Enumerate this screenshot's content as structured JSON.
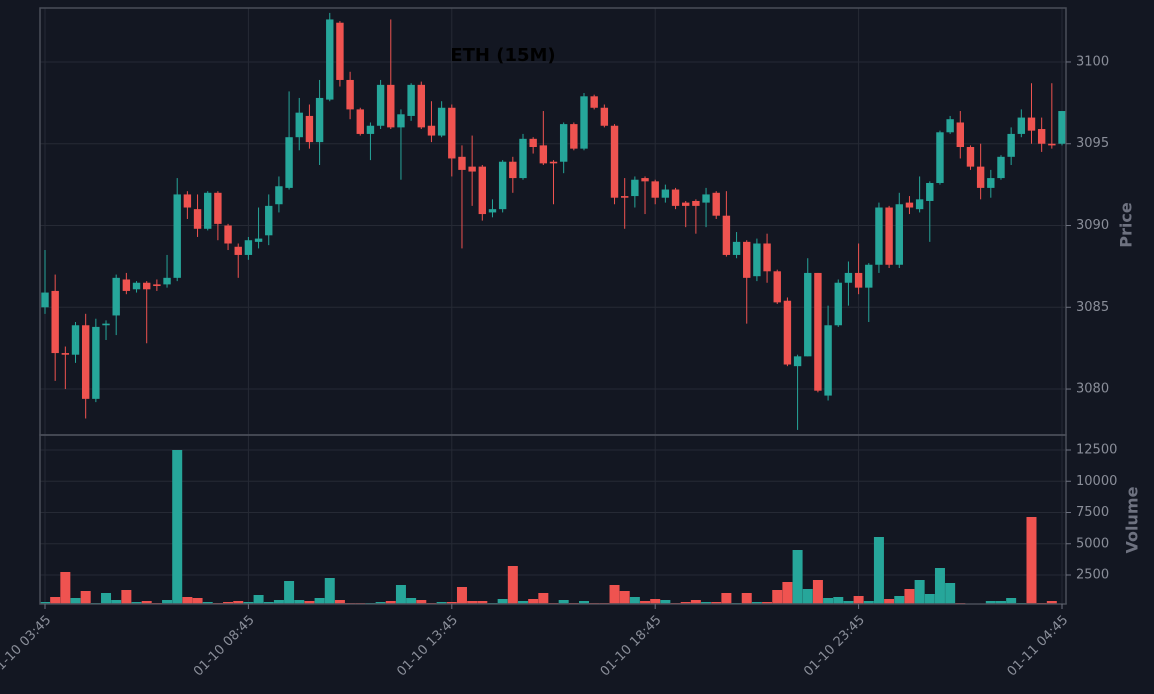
{
  "chart_data": {
    "type": "candlestick",
    "title": "ETH (15M)",
    "ylabel": "Price",
    "volume_label": "Volume",
    "up_color": "#26a69a",
    "down_color": "#ef5350",
    "grid": true,
    "x": [
      "01-10 03:45",
      "01-10 04:00",
      "01-10 04:15",
      "01-10 04:30",
      "01-10 04:45",
      "01-10 05:00",
      "01-10 05:15",
      "01-10 05:30",
      "01-10 05:45",
      "01-10 06:00",
      "01-10 06:15",
      "01-10 06:30",
      "01-10 06:45",
      "01-10 07:00",
      "01-10 07:15",
      "01-10 07:30",
      "01-10 07:45",
      "01-10 08:00",
      "01-10 08:15",
      "01-10 08:30",
      "01-10 08:45",
      "01-10 09:00",
      "01-10 09:15",
      "01-10 09:30",
      "01-10 09:45",
      "01-10 10:00",
      "01-10 10:15",
      "01-10 10:30",
      "01-10 10:45",
      "01-10 11:00",
      "01-10 11:15",
      "01-10 11:30",
      "01-10 11:45",
      "01-10 12:00",
      "01-10 12:15",
      "01-10 12:30",
      "01-10 12:45",
      "01-10 13:00",
      "01-10 13:15",
      "01-10 13:30",
      "01-10 13:45",
      "01-10 14:00",
      "01-10 14:15",
      "01-10 14:30",
      "01-10 14:45",
      "01-10 15:00",
      "01-10 15:15",
      "01-10 15:30",
      "01-10 15:45",
      "01-10 16:00",
      "01-10 16:15",
      "01-10 16:30",
      "01-10 16:45",
      "01-10 17:00",
      "01-10 17:15",
      "01-10 17:30",
      "01-10 17:45",
      "01-10 18:00",
      "01-10 18:15",
      "01-10 18:30",
      "01-10 18:45",
      "01-10 19:00",
      "01-10 19:15",
      "01-10 19:30",
      "01-10 19:45",
      "01-10 20:00",
      "01-10 20:15",
      "01-10 20:30",
      "01-10 20:45",
      "01-10 21:00",
      "01-10 21:15",
      "01-10 21:30",
      "01-10 21:45",
      "01-10 22:00",
      "01-10 22:15",
      "01-10 22:30",
      "01-10 22:45",
      "01-10 23:00",
      "01-10 23:15",
      "01-10 23:30",
      "01-10 23:45",
      "01-11 00:00",
      "01-11 00:15",
      "01-11 00:30",
      "01-11 00:45",
      "01-11 01:00",
      "01-11 01:15",
      "01-11 01:30",
      "01-11 01:45",
      "01-11 02:00",
      "01-11 02:15",
      "01-11 02:30",
      "01-11 02:45",
      "01-11 03:00",
      "01-11 03:15",
      "01-11 03:30",
      "01-11 03:45",
      "01-11 04:00",
      "01-11 04:15",
      "01-11 04:30",
      "01-11 04:45"
    ],
    "xticks": [
      "01-10 03:45",
      "01-10 08:45",
      "01-10 13:45",
      "01-10 18:45",
      "01-10 23:45",
      "01-11 04:45"
    ],
    "open": [
      3085.0,
      3086.0,
      3082.2,
      3082.1,
      3083.9,
      3079.4,
      3083.9,
      3084.5,
      3086.7,
      3086.1,
      3086.5,
      3086.4,
      3086.4,
      3086.8,
      3091.9,
      3091.0,
      3089.8,
      3092.0,
      3090.0,
      3088.7,
      3088.2,
      3089.0,
      3089.4,
      3091.3,
      3092.3,
      3095.4,
      3096.7,
      3095.1,
      3097.7,
      3102.4,
      3098.9,
      3097.1,
      3095.6,
      3096.1,
      3098.6,
      3096.0,
      3096.7,
      3098.6,
      3096.1,
      3095.5,
      3097.2,
      3094.2,
      3093.6,
      3093.6,
      3090.8,
      3091.0,
      3093.9,
      3092.9,
      3095.3,
      3094.9,
      3093.9,
      3093.9,
      3096.2,
      3094.7,
      3097.9,
      3097.2,
      3096.1,
      3091.8,
      3091.8,
      3092.9,
      3092.7,
      3091.7,
      3092.2,
      3091.4,
      3091.5,
      3091.4,
      3092.0,
      3090.6,
      3088.2,
      3089.0,
      3086.9,
      3088.9,
      3087.2,
      3085.4,
      3081.4,
      3082.0,
      3087.1,
      3079.6,
      3083.9,
      3086.5,
      3087.1,
      3086.2,
      3087.6,
      3091.1,
      3087.6,
      3091.4,
      3091.0,
      3091.5,
      3092.6,
      3095.7,
      3096.3,
      3094.8,
      3093.6,
      3092.3,
      3092.9,
      3094.2,
      3095.6,
      3096.6,
      3095.9,
      3095.0,
      3095.0
    ],
    "high": [
      3088.5,
      3087.0,
      3082.6,
      3084.1,
      3084.6,
      3084.3,
      3084.2,
      3087.0,
      3087.1,
      3086.6,
      3086.6,
      3086.7,
      3088.2,
      3092.9,
      3092.1,
      3091.9,
      3092.1,
      3092.1,
      3090.1,
      3088.9,
      3089.3,
      3091.1,
      3091.9,
      3093.0,
      3098.2,
      3097.8,
      3097.4,
      3098.9,
      3103.0,
      3102.5,
      3099.4,
      3097.2,
      3096.3,
      3098.9,
      3102.6,
      3097.1,
      3098.7,
      3098.8,
      3097.6,
      3097.6,
      3097.4,
      3094.9,
      3095.5,
      3093.7,
      3091.6,
      3094.0,
      3094.2,
      3095.6,
      3095.4,
      3097.0,
      3094.0,
      3096.3,
      3096.3,
      3098.1,
      3098.0,
      3097.4,
      3096.2,
      3092.9,
      3093.0,
      3093.0,
      3092.8,
      3092.5,
      3092.3,
      3091.5,
      3091.6,
      3092.3,
      3092.1,
      3092.1,
      3089.6,
      3089.1,
      3089.2,
      3089.5,
      3087.3,
      3085.6,
      3082.1,
      3088.0,
      3087.1,
      3085.1,
      3086.7,
      3087.8,
      3088.9,
      3087.7,
      3091.4,
      3091.2,
      3092.0,
      3091.8,
      3093.0,
      3092.7,
      3095.8,
      3096.7,
      3097.0,
      3094.9,
      3095.0,
      3093.4,
      3094.3,
      3096.0,
      3097.1,
      3098.7,
      3096.6,
      3098.7,
      3097.0
    ],
    "low": [
      3084.6,
      3080.5,
      3080.0,
      3081.6,
      3078.2,
      3079.2,
      3083.0,
      3083.3,
      3085.8,
      3085.9,
      3082.8,
      3086.0,
      3086.2,
      3086.6,
      3090.4,
      3089.3,
      3089.7,
      3089.1,
      3088.5,
      3086.8,
      3087.9,
      3088.6,
      3088.8,
      3090.8,
      3092.2,
      3094.6,
      3094.7,
      3093.7,
      3097.6,
      3098.5,
      3096.5,
      3095.5,
      3094.0,
      3095.9,
      3095.9,
      3092.8,
      3096.4,
      3095.9,
      3095.1,
      3095.4,
      3093.0,
      3088.6,
      3091.2,
      3090.3,
      3090.5,
      3090.8,
      3092.0,
      3092.8,
      3094.4,
      3093.7,
      3091.3,
      3093.2,
      3094.6,
      3094.6,
      3097.1,
      3096.0,
      3091.3,
      3089.8,
      3091.1,
      3090.7,
      3091.3,
      3091.4,
      3091.0,
      3089.9,
      3089.5,
      3089.9,
      3090.4,
      3088.1,
      3088.0,
      3084.0,
      3086.6,
      3086.5,
      3085.2,
      3081.4,
      3077.5,
      3082.0,
      3079.8,
      3079.3,
      3083.8,
      3085.1,
      3085.8,
      3084.1,
      3087.1,
      3087.4,
      3087.4,
      3090.7,
      3090.8,
      3089.0,
      3092.5,
      3095.6,
      3094.1,
      3093.4,
      3091.6,
      3091.7,
      3092.8,
      3093.7,
      3095.4,
      3095.0,
      3094.5,
      3094.7,
      3094.9
    ],
    "close": [
      3085.9,
      3082.2,
      3082.1,
      3083.9,
      3079.4,
      3083.8,
      3084.0,
      3086.8,
      3086.0,
      3086.5,
      3086.1,
      3086.3,
      3086.8,
      3091.9,
      3091.1,
      3089.8,
      3092.0,
      3090.1,
      3088.9,
      3088.2,
      3089.1,
      3089.2,
      3091.2,
      3092.4,
      3095.4,
      3096.9,
      3095.1,
      3097.8,
      3102.6,
      3098.9,
      3097.1,
      3095.6,
      3096.1,
      3098.6,
      3096.0,
      3096.8,
      3098.6,
      3096.0,
      3095.5,
      3097.2,
      3094.1,
      3093.4,
      3093.3,
      3090.7,
      3091.0,
      3093.9,
      3092.9,
      3095.3,
      3094.8,
      3093.8,
      3093.8,
      3096.2,
      3094.7,
      3097.9,
      3097.2,
      3096.1,
      3091.7,
      3091.7,
      3092.8,
      3092.7,
      3091.7,
      3092.2,
      3091.2,
      3091.2,
      3091.2,
      3091.9,
      3090.6,
      3088.2,
      3089.0,
      3086.8,
      3088.9,
      3087.2,
      3085.3,
      3081.5,
      3082.0,
      3087.1,
      3079.9,
      3083.9,
      3086.5,
      3087.1,
      3086.2,
      3087.6,
      3091.1,
      3087.6,
      3091.3,
      3091.1,
      3091.6,
      3092.6,
      3095.7,
      3096.5,
      3094.8,
      3093.6,
      3092.3,
      3092.9,
      3094.2,
      3095.6,
      3096.6,
      3095.8,
      3095.0,
      3094.9,
      3097.0
    ],
    "volume": [
      340,
      740,
      2740,
      660,
      1220,
      260,
      1060,
      500,
      1300,
      340,
      420,
      260,
      500,
      12500,
      740,
      660,
      340,
      260,
      340,
      420,
      340,
      900,
      340,
      500,
      2020,
      500,
      420,
      660,
      2260,
      500,
      260,
      260,
      260,
      340,
      420,
      1700,
      660,
      500,
      260,
      340,
      340,
      1540,
      420,
      420,
      260,
      580,
      3220,
      420,
      580,
      1060,
      260,
      500,
      260,
      420,
      260,
      260,
      1700,
      1220,
      740,
      420,
      580,
      500,
      260,
      340,
      500,
      340,
      340,
      1060,
      260,
      1060,
      340,
      340,
      1300,
      1940,
      4500,
      1380,
      2100,
      660,
      740,
      420,
      820,
      420,
      5540,
      580,
      820,
      1380,
      2100,
      980,
      3060,
      1860,
      260,
      200,
      200,
      420,
      420,
      660,
      260,
      7140,
      260,
      420,
      200
    ],
    "ylim": [
      3077.19,
      3103.3
    ],
    "yticks": [
      3080,
      3085,
      3090,
      3095,
      3100
    ],
    "volume_ylim": [
      180,
      13700
    ],
    "volume_yticks": [
      2500,
      5000,
      7500,
      10000,
      12500
    ]
  }
}
